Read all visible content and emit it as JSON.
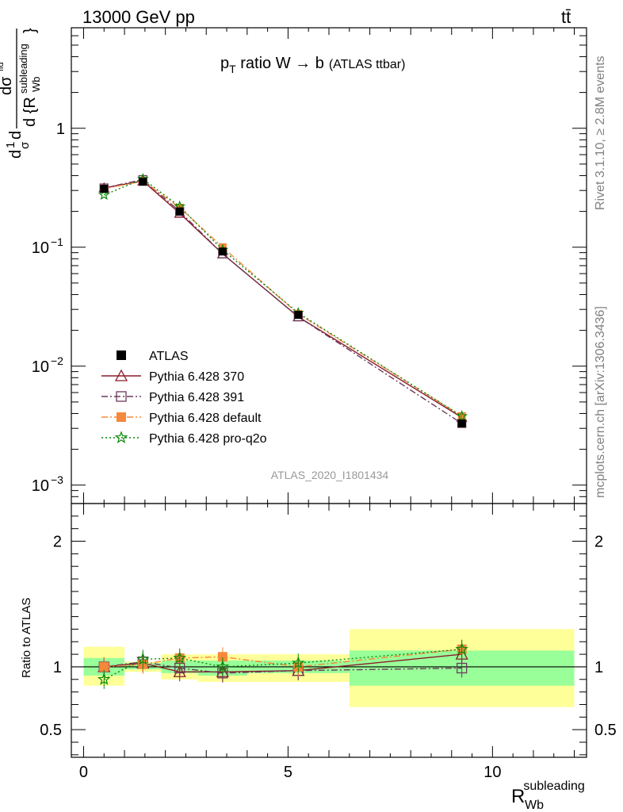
{
  "header": {
    "energy_label": "13000 GeV pp",
    "process_label": "tt̄"
  },
  "title": {
    "main": "p",
    "main_sub": "T",
    "main_rest": " ratio W → b",
    "small": "(ATLAS ttbar)"
  },
  "side_labels": {
    "rivet": "Rivet 3.1.10, ≥ 2.8M events",
    "mcplots": "mcplots.cern.ch [arXiv:1306.3436]"
  },
  "watermark": "ATLAS_2020_I1801434",
  "axes": {
    "ylabel_main_parts": [
      "d",
      "1",
      "σ",
      "d",
      "dσ",
      "fid",
      "d {R",
      "subleading",
      "Wb",
      "}"
    ],
    "ylabel_ratio": "Ratio to ATLAS",
    "xlabel": "R",
    "xlabel_sup": "subleading",
    "xlabel_sub": "Wb",
    "main_y_ticks": [
      {
        "value": 1,
        "base": "1",
        "exp": ""
      },
      {
        "value": 0.1,
        "base": "10",
        "exp": "−1"
      },
      {
        "value": 0.01,
        "base": "10",
        "exp": "−2"
      },
      {
        "value": 0.001,
        "base": "10",
        "exp": "−3"
      }
    ],
    "ratio_y_ticks": [
      {
        "value": 2,
        "label": "2"
      },
      {
        "value": 1,
        "label": "1"
      },
      {
        "value": 0.5,
        "label": "0.5"
      }
    ],
    "x_ticks": [
      {
        "value": 0,
        "label": "0"
      },
      {
        "value": 5,
        "label": "5"
      },
      {
        "value": 10,
        "label": "10"
      }
    ]
  },
  "legend": [
    {
      "label": "ATLAS",
      "color": "#000000",
      "marker": "filled-square",
      "dash": "none"
    },
    {
      "label": "Pythia 6.428 370",
      "color": "#8b1a2b",
      "marker": "open-triangle",
      "dash": "solid"
    },
    {
      "label": "Pythia 6.428 391",
      "color": "#6b3a5a",
      "marker": "open-square",
      "dash": "dashdot"
    },
    {
      "label": "Pythia 6.428 default",
      "color": "#f5883a",
      "marker": "filled-square",
      "dash": "dashdot"
    },
    {
      "label": "Pythia 6.428 pro-q2o",
      "color": "#0a8a0a",
      "marker": "star",
      "dash": "dotted"
    }
  ],
  "chart_data": {
    "type": "line",
    "x_scale": "linear",
    "main_y_scale": "log",
    "xlim": [
      -0.3,
      12.3
    ],
    "main_ylim": [
      0.0007,
      7
    ],
    "ratio_ylim": [
      0.28,
      2.3
    ],
    "bins": [
      {
        "lo": 0.0,
        "hi": 1.0
      },
      {
        "lo": 1.0,
        "hi": 1.9
      },
      {
        "lo": 1.9,
        "hi": 2.8
      },
      {
        "lo": 2.8,
        "hi": 4.0
      },
      {
        "lo": 4.0,
        "hi": 6.5
      },
      {
        "lo": 6.5,
        "hi": 12.0
      }
    ],
    "x": [
      0.5,
      1.45,
      2.35,
      3.4,
      5.25,
      9.25
    ],
    "data": {
      "name": "ATLAS",
      "values": [
        0.31,
        0.355,
        0.2,
        0.092,
        0.027,
        0.0033
      ]
    },
    "bands": {
      "inner_color": "#99ff99",
      "outer_color": "#ffff99",
      "inner": [
        [
          0.93,
          1.07
        ],
        [
          0.98,
          1.03
        ],
        [
          0.95,
          1.05
        ],
        [
          0.93,
          1.05
        ],
        [
          0.95,
          1.05
        ],
        [
          0.85,
          1.13
        ]
      ],
      "outer": [
        [
          0.85,
          1.16
        ],
        [
          0.96,
          1.04
        ],
        [
          0.9,
          1.1
        ],
        [
          0.88,
          1.1
        ],
        [
          0.88,
          1.1
        ],
        [
          0.68,
          1.3
        ]
      ]
    },
    "series": [
      {
        "name": "Pythia 6.428 370",
        "color": "#8b1a2b",
        "values": [
          0.315,
          0.36,
          0.193,
          0.088,
          0.026,
          0.0037
        ],
        "ratio": [
          1.0,
          1.03,
          0.96,
          0.96,
          0.97,
          1.1
        ]
      },
      {
        "name": "Pythia 6.428 391",
        "color": "#6b3a5a",
        "values": [
          0.315,
          0.37,
          0.2,
          0.088,
          0.026,
          0.0033
        ],
        "ratio": [
          1.0,
          1.04,
          0.99,
          0.95,
          0.97,
          0.99
        ]
      },
      {
        "name": "Pythia 6.428 default",
        "color": "#f5883a",
        "values": [
          0.31,
          0.36,
          0.215,
          0.1,
          0.0275,
          0.0038
        ],
        "ratio": [
          1.0,
          1.02,
          1.07,
          1.08,
          1.0,
          1.14
        ]
      },
      {
        "name": "Pythia 6.428 pro-q2o",
        "color": "#0a8a0a",
        "values": [
          0.275,
          0.375,
          0.22,
          0.095,
          0.028,
          0.0038
        ],
        "ratio": [
          0.9,
          1.06,
          1.07,
          1.0,
          1.03,
          1.14
        ]
      }
    ]
  }
}
